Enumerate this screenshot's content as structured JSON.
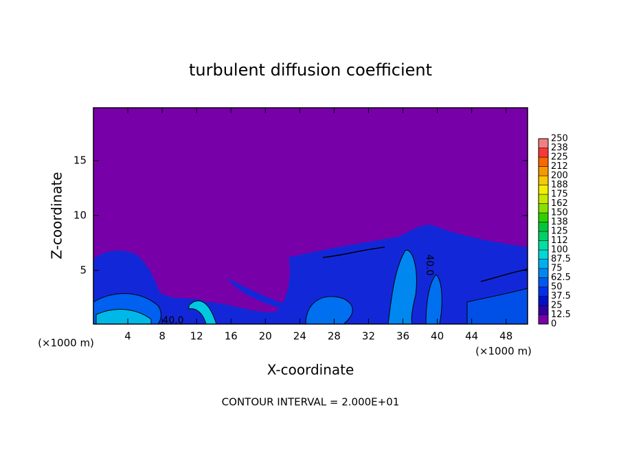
{
  "chart_data": {
    "type": "contour",
    "title": "turbulent diffusion coefficient",
    "xlabel": "X-coordinate",
    "ylabel": "Z-coordinate",
    "x_unit_labels": [
      "(×1000 m)",
      "(×1000 m)"
    ],
    "footer": "CONTOUR INTERVAL = 2.000E+01",
    "contour_labels": [
      "40.0",
      "40.0"
    ],
    "xlim": [
      0,
      50.5
    ],
    "ylim": [
      0.125,
      19.8
    ],
    "xticks": [
      4,
      8,
      12,
      16,
      20,
      24,
      28,
      32,
      36,
      40,
      44,
      48
    ],
    "yticks": [
      5,
      10,
      15
    ],
    "colorbar": {
      "levels": [
        0,
        12.5,
        25,
        37.5,
        50,
        62.5,
        75,
        87.5,
        100,
        {
          "value": 112.5,
          "label": "112"
        },
        125,
        {
          "value": 137.5,
          "label": "138"
        },
        150,
        {
          "value": 162.5,
          "label": "162"
        },
        175,
        {
          "value": 187.5,
          "label": "188"
        },
        200,
        {
          "value": 212.5,
          "label": "212"
        },
        225,
        {
          "value": 237.5,
          "label": "238"
        },
        250
      ],
      "colors": [
        "#7800a8",
        "#3000a0",
        "#0010c8",
        "#0030e8",
        "#0058f0",
        "#0088f0",
        "#00b0f0",
        "#00d8d8",
        "#00e0a0",
        "#00d068",
        "#00c838",
        "#30d000",
        "#88e000",
        "#c8e800",
        "#f0f000",
        "#f8c800",
        "#f89800",
        "#f86800",
        "#f83838",
        "#f08080"
      ]
    }
  }
}
